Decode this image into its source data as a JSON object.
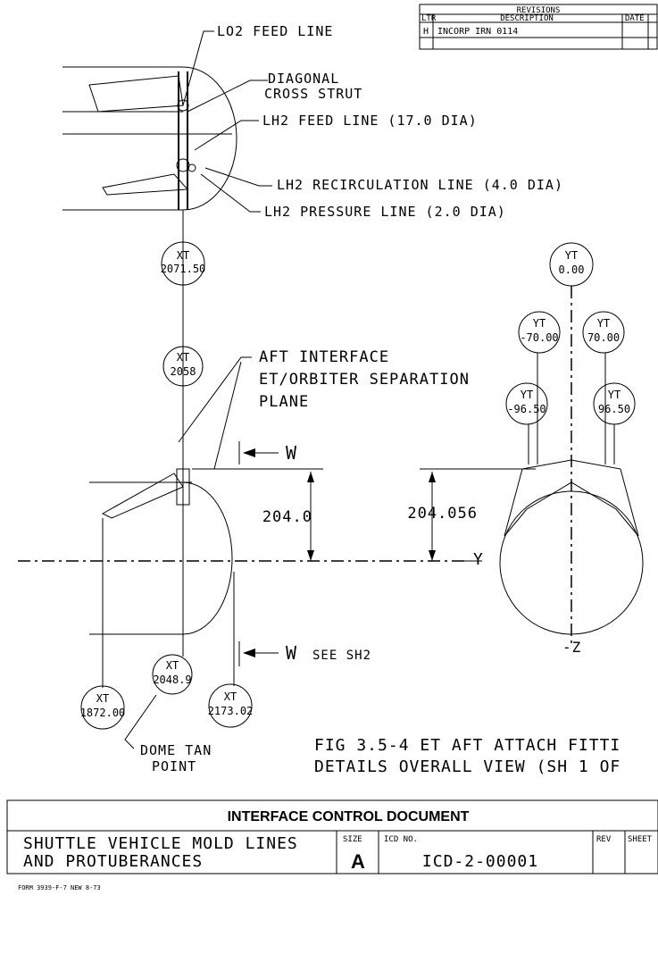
{
  "revisions": {
    "heading": "REVISIONS",
    "columns": [
      "LTR",
      "DESCRIPTION",
      "DATE"
    ],
    "row": {
      "ltr": "H",
      "description": "INCORP IRN 0114"
    }
  },
  "callouts": {
    "lo2_feed_line": "LO2 FEED LINE",
    "diagonal_cross_strut": [
      "DIAGONAL",
      "CROSS STRUT"
    ],
    "lh2_feed_line": "LH2 FEED LINE (17.0 DIA)",
    "lh2_recirculation_line": "LH2 RECIRCULATION LINE (4.0 DIA)",
    "lh2_pressure_line": "LH2 PRESSURE LINE (2.0 DIA)",
    "aft_interface": [
      "AFT INTERFACE",
      "ET/ORBITER SEPARATION",
      "PLANE"
    ],
    "dome_tan_point": [
      "DOME TAN",
      "POINT"
    ]
  },
  "stations": [
    {
      "axis": "XT",
      "value": "2071.50"
    },
    {
      "axis": "XT",
      "value": "2058"
    },
    {
      "axis": "XT",
      "value": "2048.9"
    },
    {
      "axis": "XT",
      "value": "1872.00"
    },
    {
      "axis": "XT",
      "value": "2173.02"
    },
    {
      "axis": "YT",
      "value": "0.00"
    },
    {
      "axis": "YT",
      "value": "-70.00"
    },
    {
      "axis": "YT",
      "value": "70.00"
    },
    {
      "axis": "YT",
      "value": "-96.50"
    },
    {
      "axis": "YT",
      "value": "96.50"
    }
  ],
  "dimensions": {
    "side_view": "204.0",
    "end_view": "204.056"
  },
  "section_labels": {
    "w_top": "W",
    "w_bottom": "W",
    "see_sheet": "SEE SH2",
    "y_axis": "Y",
    "z_axis": "-Z"
  },
  "figure_caption": [
    "FIG 3.5-4  ET AFT ATTACH FITTI",
    "DETAILS OVERALL VIEW (SH 1 OF"
  ],
  "title_block": {
    "document_title": "INTERFACE CONTROL DOCUMENT",
    "title": [
      "SHUTTLE VEHICLE MOLD LINES",
      "AND PROTUBERANCES"
    ],
    "size_label": "SIZE",
    "size": "A",
    "icd_label": "ICD NO.",
    "icd_number": "ICD-2-00001",
    "rev_label": "REV",
    "sheet_label": "SHEET"
  },
  "form_number": "FORM 3939-F-7 NEW 8-73"
}
